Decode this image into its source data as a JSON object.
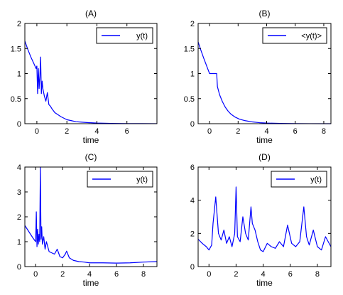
{
  "chart_data": [
    {
      "type": "line",
      "title": "(A)",
      "xlabel": "time",
      "ylabel": "",
      "xlim": [
        -0.8,
        8
      ],
      "ylim": [
        0,
        2
      ],
      "xticks": [
        0,
        2,
        4,
        6
      ],
      "yticks": [
        0,
        0.5,
        1,
        1.5,
        2
      ],
      "xtick_labels": [
        "0",
        "2",
        "4",
        "6"
      ],
      "ytick_labels": [
        "0",
        "0.5",
        "1",
        "1.5",
        "2"
      ],
      "legend": {
        "position": "top-right",
        "entries": [
          "y(t)"
        ]
      },
      "grid": false,
      "series": [
        {
          "name": "y(t)",
          "color": "#0000ff",
          "x": [
            -0.8,
            -0.6,
            -0.4,
            -0.2,
            -0.05,
            0.0,
            0.05,
            0.1,
            0.15,
            0.2,
            0.25,
            0.3,
            0.35,
            0.4,
            0.5,
            0.6,
            0.7,
            0.8,
            0.9,
            1.0,
            1.2,
            1.4,
            1.6,
            1.8,
            2.0,
            2.3,
            2.6,
            3.0,
            3.5,
            4.0,
            5.0,
            6.0,
            7.0,
            8.0
          ],
          "y": [
            1.65,
            1.48,
            1.33,
            1.2,
            1.1,
            1.15,
            0.6,
            1.1,
            0.7,
            0.95,
            1.33,
            0.6,
            0.85,
            0.7,
            0.55,
            0.45,
            0.62,
            0.38,
            0.35,
            0.3,
            0.22,
            0.18,
            0.14,
            0.11,
            0.08,
            0.06,
            0.04,
            0.03,
            0.02,
            0.012,
            0.006,
            0.003,
            0.002,
            0.001
          ]
        }
      ]
    },
    {
      "type": "line",
      "title": "(B)",
      "xlabel": "time",
      "ylabel": "",
      "xlim": [
        -0.8,
        8.5
      ],
      "ylim": [
        0,
        2
      ],
      "xticks": [
        0,
        2,
        4,
        6,
        8
      ],
      "yticks": [
        0,
        0.5,
        1,
        1.5,
        2
      ],
      "xtick_labels": [
        "0",
        "2",
        "4",
        "6",
        "8"
      ],
      "ytick_labels": [
        "0",
        "0.5",
        "1",
        "1.5",
        "2"
      ],
      "legend": {
        "position": "top-right",
        "entries": [
          "<y(t)>"
        ]
      },
      "grid": false,
      "series": [
        {
          "name": "<y(t)>",
          "color": "#0000ff",
          "x": [
            -0.8,
            -0.6,
            -0.4,
            -0.2,
            0.0,
            0.5,
            0.55,
            0.7,
            0.9,
            1.1,
            1.3,
            1.5,
            1.8,
            2.1,
            2.5,
            3.0,
            3.5,
            4.0,
            5.0,
            6.0,
            7.0,
            8.5
          ],
          "y": [
            1.63,
            1.46,
            1.3,
            1.15,
            1.0,
            1.0,
            0.74,
            0.58,
            0.44,
            0.33,
            0.25,
            0.19,
            0.13,
            0.09,
            0.06,
            0.035,
            0.02,
            0.012,
            0.005,
            0.002,
            0.001,
            0.0
          ]
        }
      ]
    },
    {
      "type": "line",
      "title": "(C)",
      "xlabel": "time",
      "ylabel": "",
      "xlim": [
        -0.8,
        9
      ],
      "ylim": [
        0,
        4
      ],
      "xticks": [
        0,
        2,
        4,
        6,
        8
      ],
      "yticks": [
        0,
        1,
        2,
        3,
        4
      ],
      "xtick_labels": [
        "0",
        "2",
        "4",
        "6",
        "8"
      ],
      "ytick_labels": [
        "0",
        "1",
        "2",
        "3",
        "4"
      ],
      "legend": {
        "position": "top-right",
        "entries": [
          "y(t)"
        ]
      },
      "grid": false,
      "series": [
        {
          "name": "y(t)",
          "color": "#0000ff",
          "x": [
            -0.8,
            -0.5,
            -0.2,
            0.0,
            0.05,
            0.1,
            0.15,
            0.2,
            0.25,
            0.3,
            0.35,
            0.4,
            0.45,
            0.5,
            0.6,
            0.7,
            0.8,
            1.0,
            1.2,
            1.4,
            1.6,
            1.8,
            2.0,
            2.2,
            2.3,
            2.5,
            2.8,
            3.2,
            3.6,
            4.0,
            5.0,
            6.0,
            7.0,
            8.0,
            9.0
          ],
          "y": [
            1.65,
            1.4,
            1.15,
            1.0,
            2.2,
            0.8,
            1.5,
            0.9,
            1.3,
            1.0,
            4.0,
            1.1,
            1.6,
            0.9,
            1.2,
            0.7,
            1.0,
            0.6,
            0.55,
            0.5,
            0.7,
            0.4,
            0.35,
            0.5,
            0.62,
            0.35,
            0.25,
            0.2,
            0.18,
            0.15,
            0.15,
            0.14,
            0.15,
            0.18,
            0.2
          ]
        }
      ]
    },
    {
      "type": "line",
      "title": "(D)",
      "xlabel": "time",
      "ylabel": "",
      "xlim": [
        -0.8,
        9
      ],
      "ylim": [
        0,
        6
      ],
      "xticks": [
        0,
        2,
        4,
        6,
        8
      ],
      "yticks": [
        0,
        2,
        4,
        6
      ],
      "xtick_labels": [
        "0",
        "2",
        "4",
        "6",
        "8"
      ],
      "ytick_labels": [
        "0",
        "2",
        "4",
        "6"
      ],
      "legend": {
        "position": "top-right",
        "entries": [
          "y(t)"
        ]
      },
      "grid": false,
      "series": [
        {
          "name": "y(t)",
          "color": "#0000ff",
          "x": [
            -0.8,
            -0.5,
            -0.2,
            0.0,
            0.2,
            0.3,
            0.5,
            0.7,
            0.9,
            1.1,
            1.3,
            1.5,
            1.7,
            1.9,
            2.0,
            2.1,
            2.3,
            2.5,
            2.7,
            2.9,
            3.1,
            3.2,
            3.4,
            3.6,
            3.8,
            4.0,
            4.3,
            4.6,
            4.9,
            5.2,
            5.5,
            5.8,
            6.1,
            6.4,
            6.7,
            7.0,
            7.2,
            7.4,
            7.7,
            8.0,
            8.3,
            8.6,
            9.0
          ],
          "y": [
            1.65,
            1.4,
            1.2,
            1.0,
            1.3,
            2.6,
            4.2,
            2.0,
            1.6,
            2.2,
            1.4,
            1.8,
            1.2,
            2.0,
            4.8,
            1.8,
            1.5,
            3.0,
            2.0,
            1.6,
            3.6,
            2.6,
            2.2,
            1.5,
            1.0,
            0.9,
            1.4,
            1.2,
            1.1,
            1.5,
            1.2,
            2.5,
            1.4,
            1.2,
            1.5,
            3.6,
            1.8,
            1.3,
            2.2,
            1.2,
            1.0,
            1.8,
            1.2
          ]
        }
      ]
    }
  ]
}
